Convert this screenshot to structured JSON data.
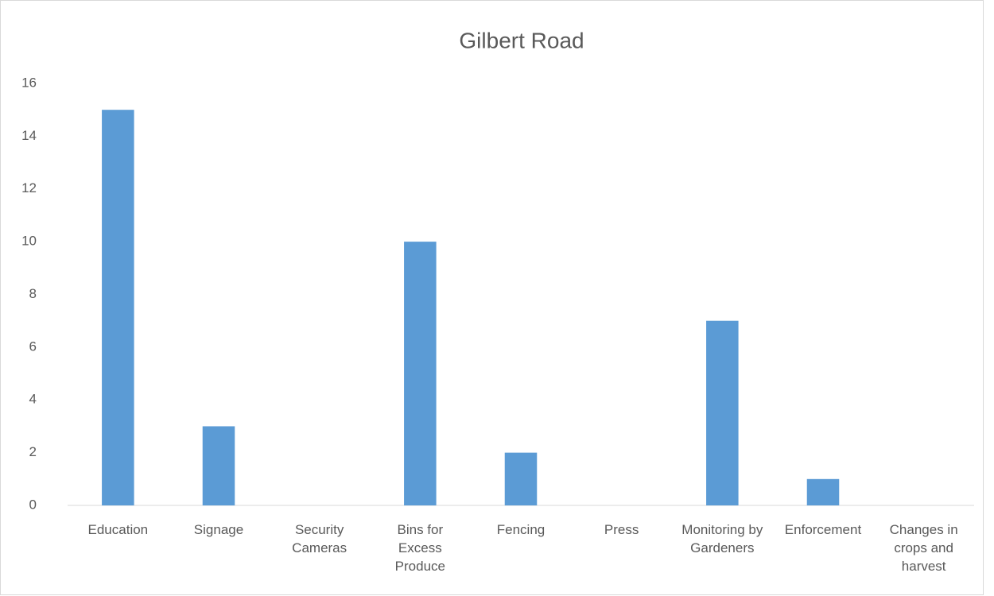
{
  "chart_data": {
    "type": "bar",
    "title": "Gilbert Road",
    "categories": [
      "Education",
      "Signage",
      "Security Cameras",
      "Bins for Excess Produce",
      "Fencing",
      "Press",
      "Monitoring by Gardeners",
      "Enforcement",
      "Changes in crops and harvest"
    ],
    "values": [
      15,
      3,
      0,
      10,
      2,
      0,
      7,
      1,
      0
    ],
    "color": "#5b9bd5",
    "ylim": [
      0,
      16
    ],
    "yticks": [
      0,
      2,
      4,
      6,
      8,
      10,
      12,
      14,
      16
    ],
    "grid": false
  }
}
